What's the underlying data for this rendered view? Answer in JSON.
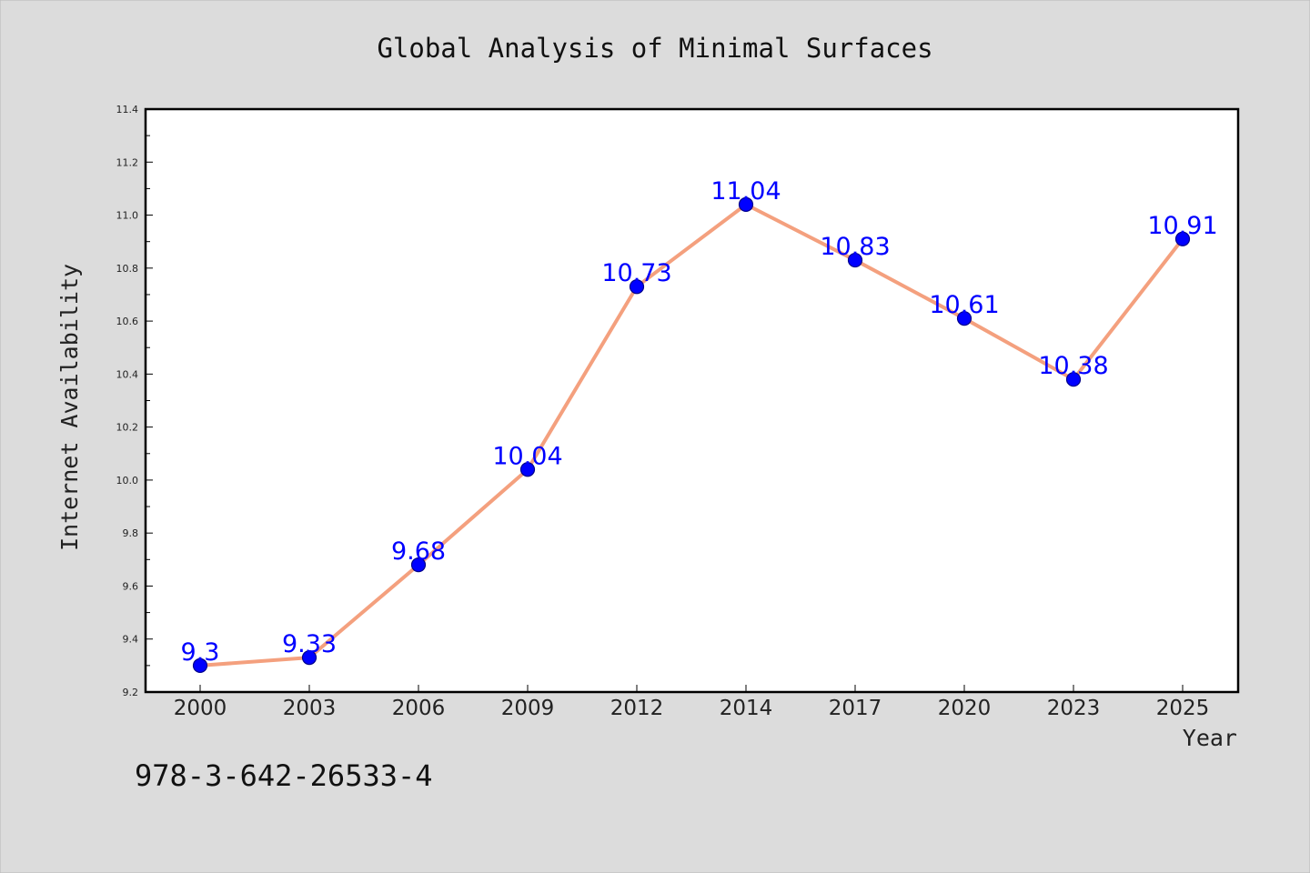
{
  "chart_data": {
    "type": "line",
    "title": "Global Analysis of Minimal Surfaces",
    "xlabel": "Year",
    "ylabel": "Internet Availability",
    "categories": [
      "2000",
      "2003",
      "2006",
      "2009",
      "2012",
      "2014",
      "2017",
      "2020",
      "2023",
      "2025"
    ],
    "series": [
      {
        "values": [
          9.3,
          9.33,
          9.68,
          10.04,
          10.73,
          11.04,
          10.83,
          10.61,
          10.38,
          10.91
        ],
        "data_labels": [
          "9.3",
          "9.33",
          "9.68",
          "10.04",
          "10.73",
          "11.04",
          "10.83",
          "10.61",
          "10.38",
          "10.91"
        ]
      }
    ],
    "ylim": [
      9.2,
      11.4
    ],
    "y_ticks": [
      "9.2",
      "9.4",
      "9.6",
      "9.8",
      "10.0",
      "10.2",
      "10.4",
      "10.6",
      "10.8",
      "11.0",
      "11.2",
      "11.4"
    ],
    "grid": false,
    "legend": "none",
    "colors": {
      "line": "#f4a07e",
      "marker_fill": "#0000ff",
      "marker_edge": "#00008b",
      "data_label": "#0000ff",
      "plot_background": "#ffffff",
      "figure_background": "#dcdcdc"
    }
  },
  "footer": {
    "code": "978-3-642-26533-4"
  }
}
